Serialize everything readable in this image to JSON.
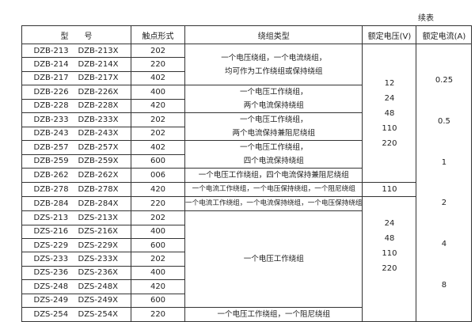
{
  "continued_label": "续表",
  "headers": [
    "型　　号",
    "触点形式",
    "绕组类型",
    "额定电压(V)",
    "额定电流(A)"
  ],
  "rows": [
    {
      "model": "DZB-213",
      "model_x": "DZB-213X",
      "contact": "202"
    },
    {
      "model": "DZB-214",
      "model_x": "DZB-214X",
      "contact": "220"
    },
    {
      "model": "DZB-217",
      "model_x": "DZB-217X",
      "contact": "402"
    },
    {
      "model": "DZB-226",
      "model_x": "DZB-226X",
      "contact": "400"
    },
    {
      "model": "DZB-228",
      "model_x": "DZB-228X",
      "contact": "420"
    },
    {
      "model": "DZB-233",
      "model_x": "DZB-233X",
      "contact": "202"
    },
    {
      "model": "DZB-243",
      "model_x": "DZB-243X",
      "contact": "202"
    },
    {
      "model": "DZB-257",
      "model_x": "DZB-257X",
      "contact": "402"
    },
    {
      "model": "DZB-259",
      "model_x": "DZB-259X",
      "contact": "600"
    },
    {
      "model": "DZB-262",
      "model_x": "DZB-262X",
      "contact": "006"
    },
    {
      "model": "DZB-278",
      "model_x": "DZB-278X",
      "contact": "420"
    },
    {
      "model": "DZB-284",
      "model_x": "DZB-284X",
      "contact": "220"
    },
    {
      "model": "DZS-213",
      "model_x": "DZS-213X",
      "contact": "202"
    },
    {
      "model": "DZS-216",
      "model_x": "DZS-216X",
      "contact": "400"
    },
    {
      "model": "DZS-229",
      "model_x": "DZS-229X",
      "contact": "600"
    },
    {
      "model": "DZS-233",
      "model_x": "DZS-233X",
      "contact": "202"
    },
    {
      "model": "DZS-236",
      "model_x": "DZS-236X",
      "contact": "400"
    },
    {
      "model": "DZS-248",
      "model_x": "DZS-248X",
      "contact": "420"
    },
    {
      "model": "DZS-249",
      "model_x": "DZS-249X",
      "contact": "600"
    },
    {
      "model": "DZS-254",
      "model_x": "DZS-254X",
      "contact": "220"
    }
  ],
  "winding_types": [
    [
      "一个电压绕组，一个电流绕组，",
      "均可作为工作绕组或保持绕组"
    ],
    [
      "一个电压工作绕组，",
      "两个电流保持绕组"
    ],
    [
      "一个电压工作绕组，",
      "两个电流保持兼阻尼绕组"
    ],
    [
      "一个电压工作绕组，",
      "四个电流保持绕组"
    ],
    [
      "一个电压工作绕组，四个电流保持兼阻尼绕组"
    ],
    [
      "一个电流工作绕组，一个电压保持绕组，一个阻尼绕组"
    ],
    [
      "一个电流工作绕组，一个电流保持绕组，一个电压保持绕组"
    ],
    [
      "一个电压工作绕组"
    ],
    [
      "一个电压工作绕组，一个阻尼绕组"
    ]
  ],
  "voltages": [
    [
      "12",
      "24",
      "48",
      "110",
      "220"
    ],
    [
      "110"
    ],
    [
      "24",
      "48",
      "110",
      "220"
    ]
  ],
  "currents": [
    "0.25",
    "0.5",
    "1",
    "2",
    "4",
    "8"
  ]
}
